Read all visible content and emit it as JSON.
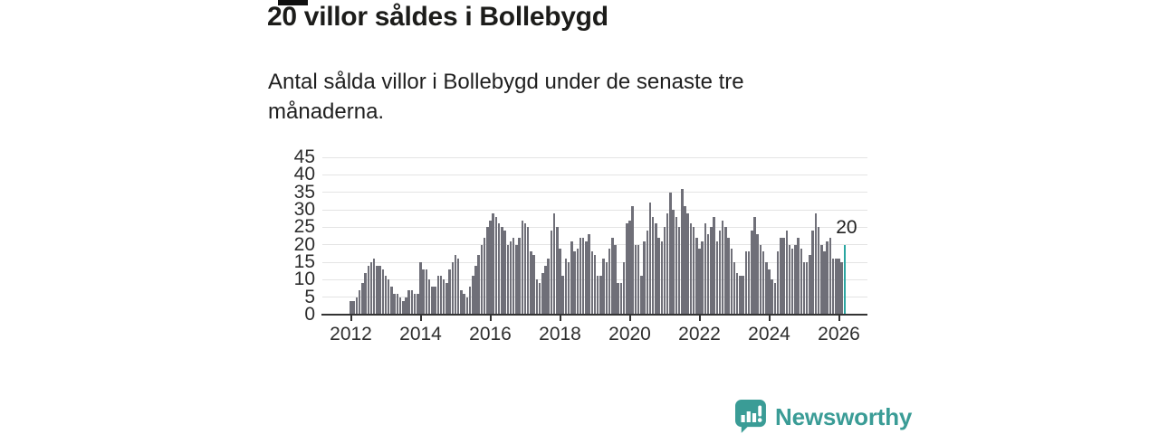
{
  "header": {
    "title": "20 villor såldes i Bollebygd",
    "subtitle": "Antal sålda villor i Bollebygd under de senaste tre månaderna."
  },
  "chart_data": {
    "type": "bar",
    "title": "20 villor såldes i Bollebygd",
    "subtitle": "Antal sålda villor i Bollebygd under de senaste tre månaderna.",
    "unit": "antal sålda villor (rullande tre månader)",
    "frequency": "monthly",
    "start": "2012-01",
    "end": "2026-03",
    "values": [
      4,
      4,
      5,
      7,
      9,
      12,
      14,
      15,
      16,
      14,
      14,
      13,
      11,
      10,
      8,
      6,
      6,
      5,
      4,
      5,
      7,
      7,
      6,
      6,
      15,
      13,
      13,
      10,
      8,
      8,
      11,
      11,
      10,
      9,
      13,
      15,
      17,
      16,
      7,
      6,
      5,
      8,
      11,
      14,
      17,
      20,
      22,
      25,
      27,
      29,
      28,
      26,
      25,
      24,
      20,
      21,
      22,
      20,
      22,
      27,
      26,
      25,
      18,
      17,
      10,
      9,
      12,
      14,
      16,
      24,
      29,
      25,
      19,
      11,
      16,
      15,
      21,
      18,
      19,
      22,
      22,
      21,
      23,
      18,
      17,
      11,
      11,
      16,
      15,
      19,
      22,
      20,
      9,
      9,
      15,
      26,
      27,
      31,
      20,
      20,
      11,
      21,
      24,
      32,
      28,
      26,
      22,
      21,
      25,
      29,
      35,
      30,
      28,
      25,
      36,
      31,
      29,
      26,
      25,
      22,
      19,
      21,
      26,
      23,
      25,
      28,
      21,
      24,
      27,
      25,
      22,
      19,
      15,
      12,
      11,
      11,
      18,
      18,
      24,
      28,
      23,
      20,
      18,
      15,
      13,
      10,
      9,
      18,
      22,
      22,
      24,
      20,
      19,
      20,
      22,
      19,
      15,
      15,
      17,
      24,
      29,
      25,
      20,
      18,
      21,
      22,
      16,
      16,
      16,
      15,
      20
    ],
    "highlight_last": {
      "value": 20,
      "label": "20",
      "color": "#2aa6a1"
    },
    "bar_color": "#6f6f78",
    "xticks": [
      2012,
      2014,
      2016,
      2018,
      2020,
      2022,
      2024,
      2026
    ],
    "yticks": [
      0,
      5,
      10,
      15,
      20,
      25,
      30,
      35,
      40,
      45
    ],
    "ylim": [
      0,
      45
    ],
    "grid": "horizontal",
    "legend": "none",
    "annotation": "20"
  },
  "footer": {
    "brand": "Newsworthy",
    "brand_color": "#3a9c96",
    "logo_icon": "bar-chart-speech-bubble-icon"
  }
}
